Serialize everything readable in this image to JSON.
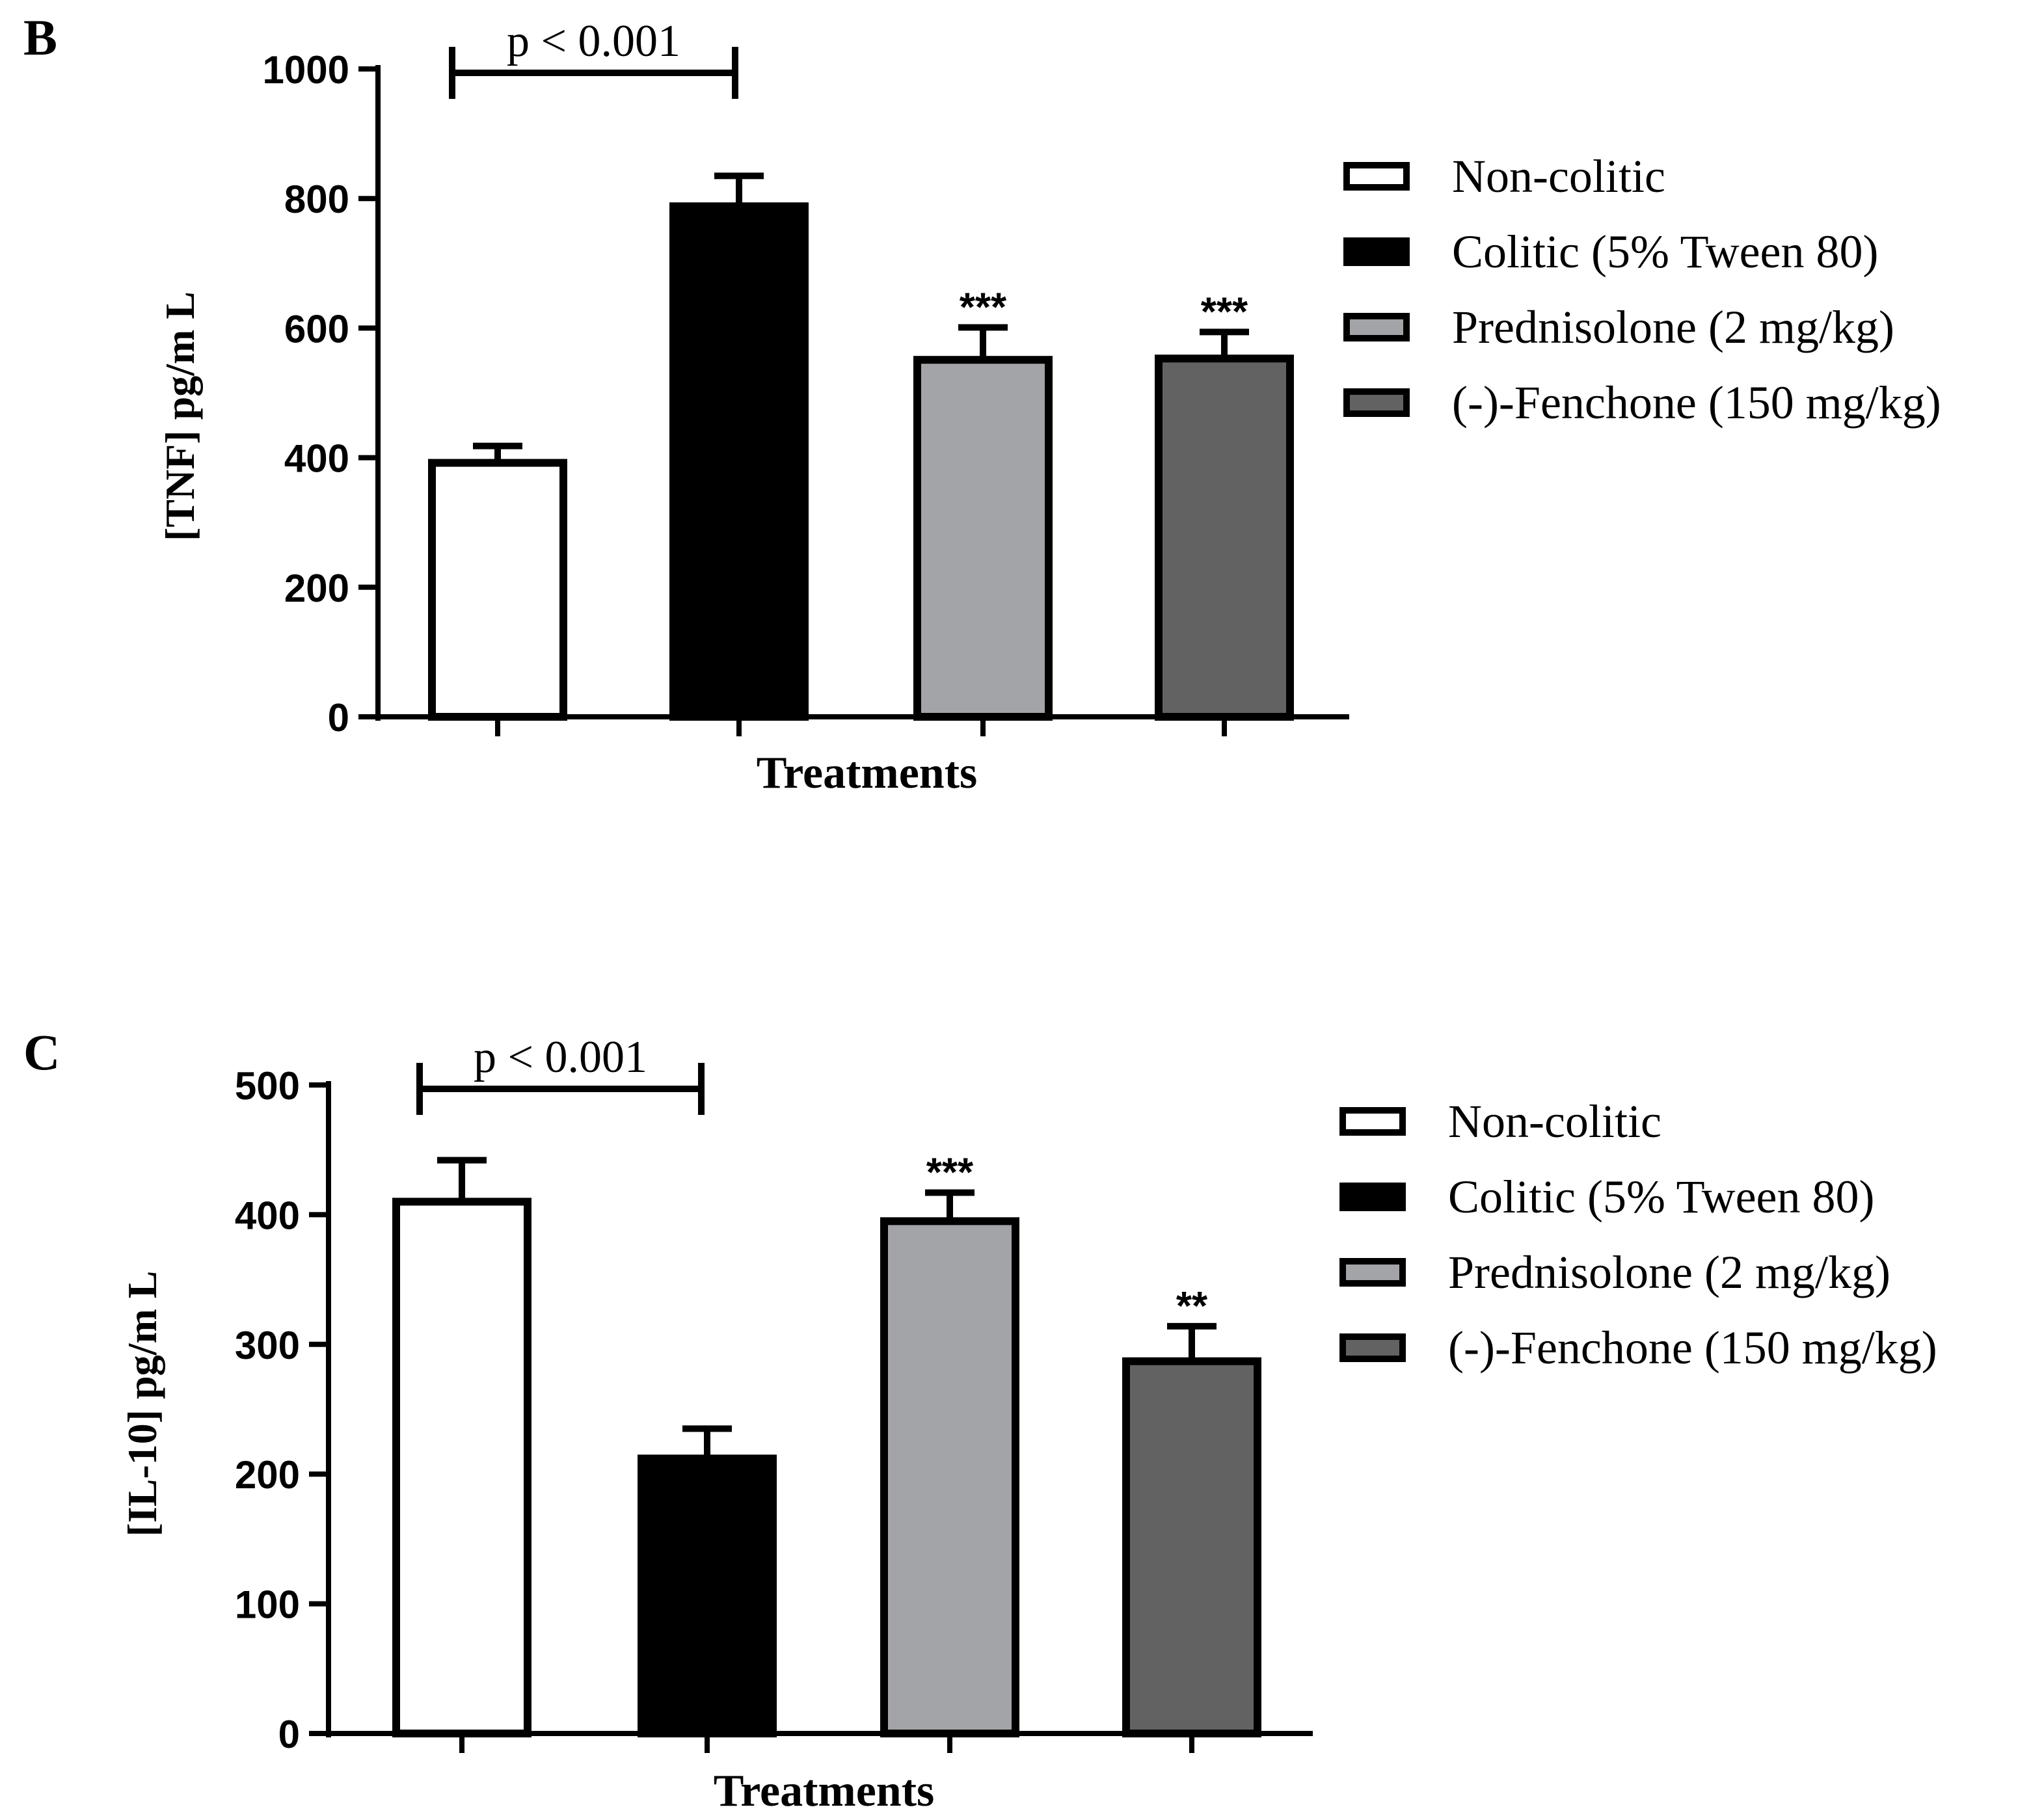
{
  "legend_entries": [
    {
      "label": "Non-colitic",
      "fill": "#ffffff"
    },
    {
      "label": "Colitic (5% Tween 80)",
      "fill": "#000000"
    },
    {
      "label": "Prednisolone (2 mg/kg)",
      "fill": "#a3a4a8"
    },
    {
      "label": "(-)-Fenchone (150 mg/kg)",
      "fill": "#626262"
    }
  ],
  "chart_data": [
    {
      "type": "bar",
      "panel_label": "B",
      "ylabel": "[TNF] pg/m L",
      "xlabel": "Treatments",
      "ylim": [
        0,
        1000
      ],
      "yticks": [
        0,
        200,
        400,
        600,
        800,
        1000
      ],
      "categories": [
        "Non-colitic",
        "Colitic (5% Tween 80)",
        "Prednisolone (2 mg/kg)",
        "(-)-Fenchone (150 mg/kg)"
      ],
      "values": [
        392,
        788,
        551,
        553
      ],
      "errors": [
        26,
        47,
        50,
        41
      ],
      "annotations": [
        "",
        "",
        "***",
        "***"
      ],
      "bracket": {
        "label": "p < 0.001",
        "from": 0,
        "to": 1
      }
    },
    {
      "type": "bar",
      "panel_label": "C",
      "ylabel": "[IL-10] pg/m L",
      "xlabel": "Treatments",
      "ylim": [
        0,
        500
      ],
      "yticks": [
        0,
        100,
        200,
        300,
        400,
        500
      ],
      "categories": [
        "Non-colitic",
        "Colitic (5% Tween 80)",
        "Prednisolone (2 mg/kg)",
        "(-)-Fenchone (150 mg/kg)"
      ],
      "values": [
        410,
        212,
        395,
        287
      ],
      "errors": [
        32,
        23,
        22,
        27
      ],
      "annotations": [
        "",
        "",
        "***",
        "**"
      ],
      "bracket": {
        "label": "p < 0.001",
        "from": 0,
        "to": 1
      }
    }
  ]
}
